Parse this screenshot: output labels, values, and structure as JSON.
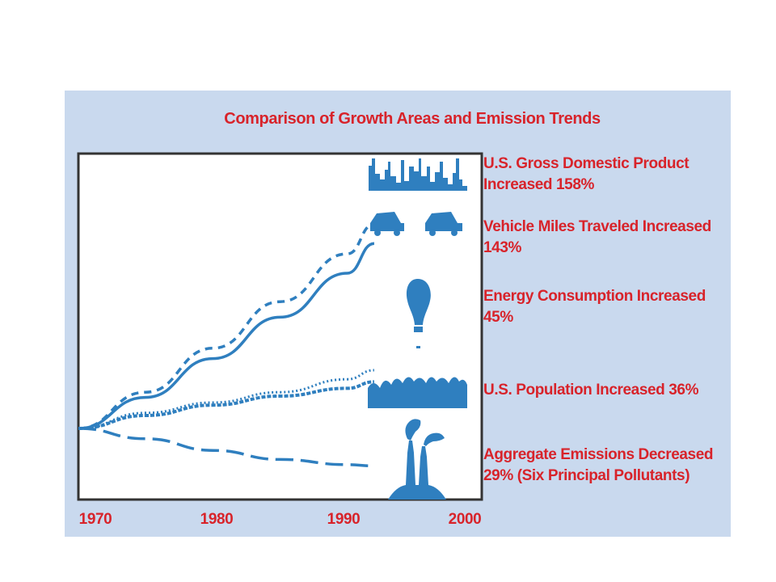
{
  "chart_data": {
    "type": "line",
    "title": "Comparison of Growth Areas and Emission Trends",
    "xlabel": "",
    "ylabel": "",
    "x_ticks": [
      "1970",
      "1980",
      "1990",
      "2000"
    ],
    "xlim": [
      1970,
      2000
    ],
    "ylim": [
      -40,
      170
    ],
    "grid": false,
    "x": [
      1970,
      1975,
      1980,
      1985,
      1990,
      1992
    ],
    "series": [
      {
        "name": "U.S. Gross Domestic Product Increased 158%",
        "style": "dashed-short",
        "values": [
          0,
          28,
          62,
          98,
          135,
          158
        ]
      },
      {
        "name": "Vehicle Miles Traveled Increased 143%",
        "style": "solid",
        "values": [
          0,
          24,
          54,
          86,
          120,
          143
        ]
      },
      {
        "name": "Energy Consumption Increased 45%",
        "style": "dotted",
        "values": [
          0,
          12,
          20,
          28,
          38,
          45
        ]
      },
      {
        "name": "U.S. Population Increased 36%",
        "style": "dotted-dense",
        "values": [
          0,
          10,
          18,
          25,
          31,
          36
        ]
      },
      {
        "name": "Aggregate Emissions Decreased 29% (Six Principal Pollutants)",
        "style": "dashed-long",
        "values": [
          0,
          -8,
          -17,
          -24,
          -28,
          -29
        ]
      }
    ],
    "labels": [
      {
        "line1": "U.S. Gross Domestic Product",
        "line2": "Increased 158%",
        "icon": "city-skyline-icon"
      },
      {
        "line1": "Vehicle Miles Traveled Increased",
        "line2": "143%",
        "icon": "car-icon"
      },
      {
        "line1": "Energy Consumption Increased",
        "line2": "45%",
        "icon": "light-bulb-icon"
      },
      {
        "line1": "U.S. Population Increased 36%",
        "line2": "",
        "icon": "crowd-icon"
      },
      {
        "line1": "Aggregate Emissions Decreased",
        "line2": "29% (Six Principal Pollutants)",
        "icon": "smokestack-icon"
      }
    ],
    "colors": {
      "line": "#2f7fbf",
      "label": "#d8232a",
      "background": "#c9d9ee",
      "plot": "#ffffff",
      "frame": "#333333"
    }
  }
}
